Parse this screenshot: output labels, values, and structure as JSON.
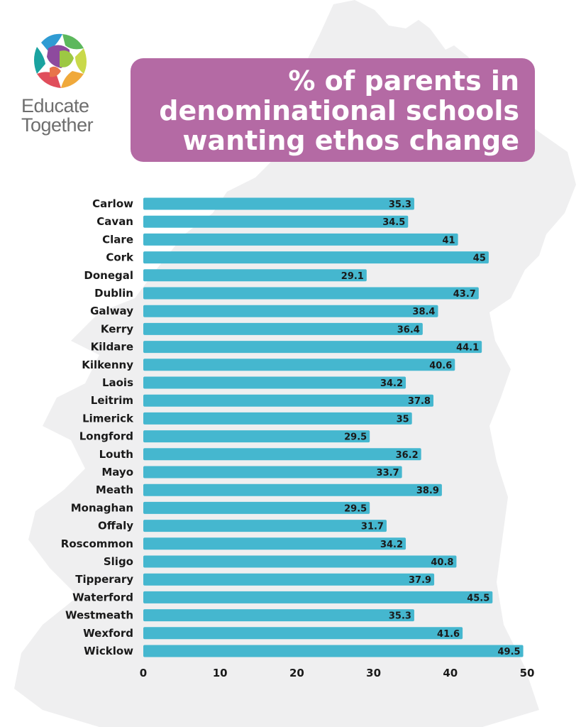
{
  "brand": {
    "line1": "Educate",
    "line2": "Together"
  },
  "title": {
    "line1": "% of parents in",
    "line2": "denominational schools",
    "line3": "wanting ethos change"
  },
  "colors": {
    "bar": "#45b7cf",
    "title_bg": "#b46aa4",
    "map": "#efeff0",
    "text": "#1a1a1a"
  },
  "chart_data": {
    "type": "bar",
    "orientation": "horizontal",
    "title": "% of parents in denominational schools wanting ethos change",
    "categories": [
      "Carlow",
      "Cavan",
      "Clare",
      "Cork",
      "Donegal",
      "Dublin",
      "Galway",
      "Kerry",
      "Kildare",
      "Kilkenny",
      "Laois",
      "Leitrim",
      "Limerick",
      "Longford",
      "Louth",
      "Mayo",
      "Meath",
      "Monaghan",
      "Offaly",
      "Roscommon",
      "Sligo",
      "Tipperary",
      "Waterford",
      "Westmeath",
      "Wexford",
      "Wicklow"
    ],
    "values": [
      35.3,
      34.5,
      41,
      45,
      29.1,
      43.7,
      38.4,
      36.4,
      44.1,
      40.6,
      34.2,
      37.8,
      35,
      29.5,
      36.2,
      33.7,
      38.9,
      29.5,
      31.7,
      34.2,
      40.8,
      37.9,
      45.5,
      35.3,
      41.6,
      49.5
    ],
    "value_labels": [
      "35.3",
      "34.5",
      "41",
      "45",
      "29.1",
      "43.7",
      "38.4",
      "36.4",
      "44.1",
      "40.6",
      "34.2",
      "37.8",
      "35",
      "29.5",
      "36.2",
      "33.7",
      "38.9",
      "29.5",
      "31.7",
      "34.2",
      "40.8",
      "37.9",
      "45.5",
      "35.3",
      "41.6",
      "49.5"
    ],
    "xlim": [
      0,
      50
    ],
    "xticks": [
      "0",
      "10",
      "20",
      "30",
      "40",
      "50"
    ],
    "grid": false,
    "legend": "none"
  }
}
